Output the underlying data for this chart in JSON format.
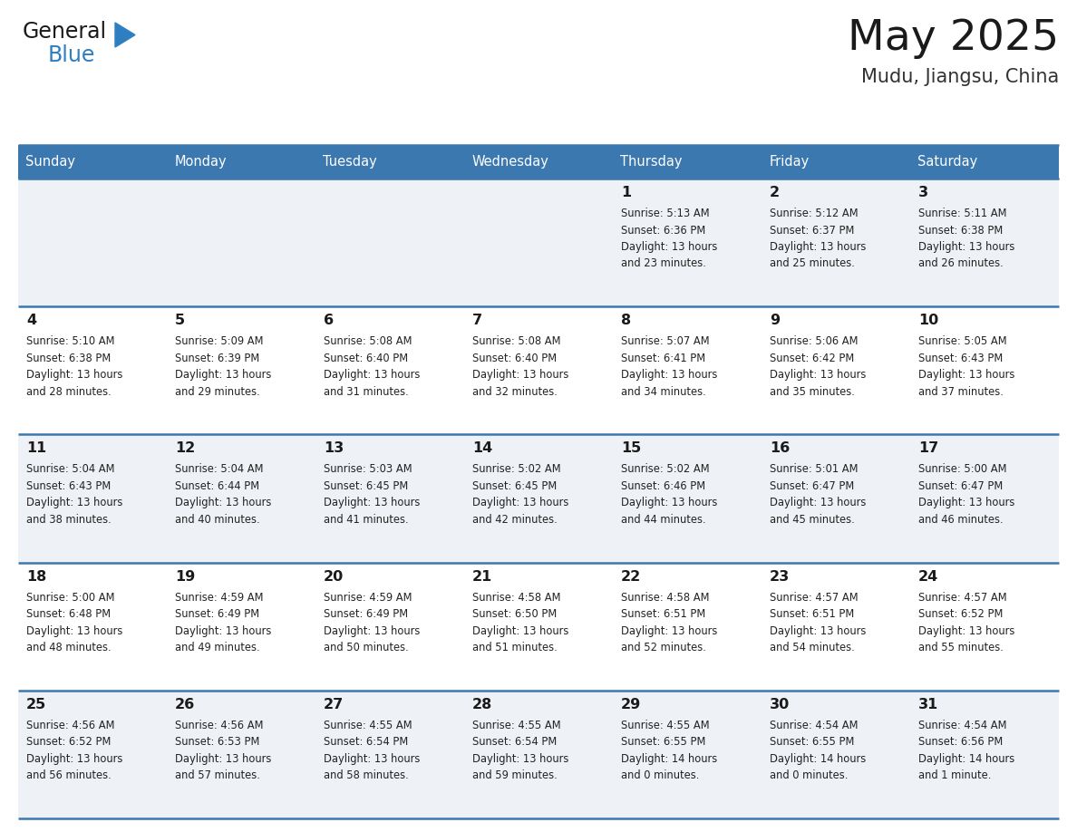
{
  "title": "May 2025",
  "subtitle": "Mudu, Jiangsu, China",
  "days_of_week": [
    "Sunday",
    "Monday",
    "Tuesday",
    "Wednesday",
    "Thursday",
    "Friday",
    "Saturday"
  ],
  "header_bg": "#3b78b0",
  "header_text": "#ffffff",
  "row_bg_light": "#eef1f5",
  "row_bg_white": "#ffffff",
  "cell_border": "#3b78b0",
  "title_color": "#1a1a1a",
  "subtitle_color": "#333333",
  "day_num_color": "#1a1a1a",
  "info_color": "#222222",
  "logo_general_color": "#1a1a1a",
  "logo_blue_color": "#2e7fc1",
  "logo_triangle_color": "#2e7fc1",
  "calendar": [
    [
      null,
      null,
      null,
      null,
      {
        "day": 1,
        "sunrise": "5:13 AM",
        "sunset": "6:36 PM",
        "daylight": "13 hours",
        "daylight2": "and 23 minutes."
      },
      {
        "day": 2,
        "sunrise": "5:12 AM",
        "sunset": "6:37 PM",
        "daylight": "13 hours",
        "daylight2": "and 25 minutes."
      },
      {
        "day": 3,
        "sunrise": "5:11 AM",
        "sunset": "6:38 PM",
        "daylight": "13 hours",
        "daylight2": "and 26 minutes."
      }
    ],
    [
      {
        "day": 4,
        "sunrise": "5:10 AM",
        "sunset": "6:38 PM",
        "daylight": "13 hours",
        "daylight2": "and 28 minutes."
      },
      {
        "day": 5,
        "sunrise": "5:09 AM",
        "sunset": "6:39 PM",
        "daylight": "13 hours",
        "daylight2": "and 29 minutes."
      },
      {
        "day": 6,
        "sunrise": "5:08 AM",
        "sunset": "6:40 PM",
        "daylight": "13 hours",
        "daylight2": "and 31 minutes."
      },
      {
        "day": 7,
        "sunrise": "5:08 AM",
        "sunset": "6:40 PM",
        "daylight": "13 hours",
        "daylight2": "and 32 minutes."
      },
      {
        "day": 8,
        "sunrise": "5:07 AM",
        "sunset": "6:41 PM",
        "daylight": "13 hours",
        "daylight2": "and 34 minutes."
      },
      {
        "day": 9,
        "sunrise": "5:06 AM",
        "sunset": "6:42 PM",
        "daylight": "13 hours",
        "daylight2": "and 35 minutes."
      },
      {
        "day": 10,
        "sunrise": "5:05 AM",
        "sunset": "6:43 PM",
        "daylight": "13 hours",
        "daylight2": "and 37 minutes."
      }
    ],
    [
      {
        "day": 11,
        "sunrise": "5:04 AM",
        "sunset": "6:43 PM",
        "daylight": "13 hours",
        "daylight2": "and 38 minutes."
      },
      {
        "day": 12,
        "sunrise": "5:04 AM",
        "sunset": "6:44 PM",
        "daylight": "13 hours",
        "daylight2": "and 40 minutes."
      },
      {
        "day": 13,
        "sunrise": "5:03 AM",
        "sunset": "6:45 PM",
        "daylight": "13 hours",
        "daylight2": "and 41 minutes."
      },
      {
        "day": 14,
        "sunrise": "5:02 AM",
        "sunset": "6:45 PM",
        "daylight": "13 hours",
        "daylight2": "and 42 minutes."
      },
      {
        "day": 15,
        "sunrise": "5:02 AM",
        "sunset": "6:46 PM",
        "daylight": "13 hours",
        "daylight2": "and 44 minutes."
      },
      {
        "day": 16,
        "sunrise": "5:01 AM",
        "sunset": "6:47 PM",
        "daylight": "13 hours",
        "daylight2": "and 45 minutes."
      },
      {
        "day": 17,
        "sunrise": "5:00 AM",
        "sunset": "6:47 PM",
        "daylight": "13 hours",
        "daylight2": "and 46 minutes."
      }
    ],
    [
      {
        "day": 18,
        "sunrise": "5:00 AM",
        "sunset": "6:48 PM",
        "daylight": "13 hours",
        "daylight2": "and 48 minutes."
      },
      {
        "day": 19,
        "sunrise": "4:59 AM",
        "sunset": "6:49 PM",
        "daylight": "13 hours",
        "daylight2": "and 49 minutes."
      },
      {
        "day": 20,
        "sunrise": "4:59 AM",
        "sunset": "6:49 PM",
        "daylight": "13 hours",
        "daylight2": "and 50 minutes."
      },
      {
        "day": 21,
        "sunrise": "4:58 AM",
        "sunset": "6:50 PM",
        "daylight": "13 hours",
        "daylight2": "and 51 minutes."
      },
      {
        "day": 22,
        "sunrise": "4:58 AM",
        "sunset": "6:51 PM",
        "daylight": "13 hours",
        "daylight2": "and 52 minutes."
      },
      {
        "day": 23,
        "sunrise": "4:57 AM",
        "sunset": "6:51 PM",
        "daylight": "13 hours",
        "daylight2": "and 54 minutes."
      },
      {
        "day": 24,
        "sunrise": "4:57 AM",
        "sunset": "6:52 PM",
        "daylight": "13 hours",
        "daylight2": "and 55 minutes."
      }
    ],
    [
      {
        "day": 25,
        "sunrise": "4:56 AM",
        "sunset": "6:52 PM",
        "daylight": "13 hours",
        "daylight2": "and 56 minutes."
      },
      {
        "day": 26,
        "sunrise": "4:56 AM",
        "sunset": "6:53 PM",
        "daylight": "13 hours",
        "daylight2": "and 57 minutes."
      },
      {
        "day": 27,
        "sunrise": "4:55 AM",
        "sunset": "6:54 PM",
        "daylight": "13 hours",
        "daylight2": "and 58 minutes."
      },
      {
        "day": 28,
        "sunrise": "4:55 AM",
        "sunset": "6:54 PM",
        "daylight": "13 hours",
        "daylight2": "and 59 minutes."
      },
      {
        "day": 29,
        "sunrise": "4:55 AM",
        "sunset": "6:55 PM",
        "daylight": "14 hours",
        "daylight2": "and 0 minutes."
      },
      {
        "day": 30,
        "sunrise": "4:54 AM",
        "sunset": "6:55 PM",
        "daylight": "14 hours",
        "daylight2": "and 0 minutes."
      },
      {
        "day": 31,
        "sunrise": "4:54 AM",
        "sunset": "6:56 PM",
        "daylight": "14 hours",
        "daylight2": "and 1 minute."
      }
    ]
  ]
}
